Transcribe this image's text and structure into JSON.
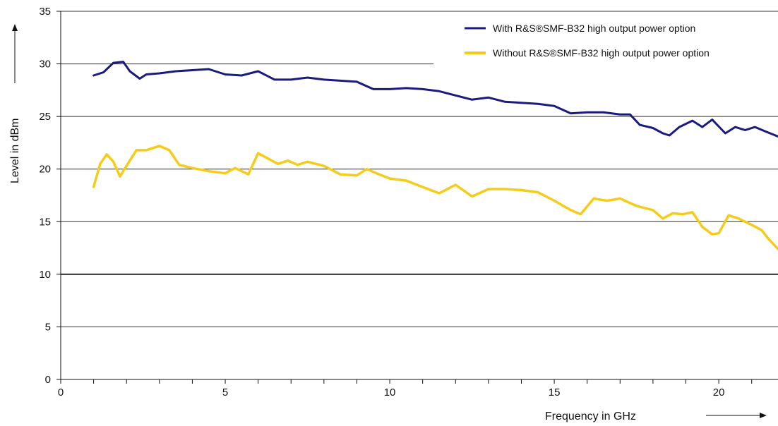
{
  "chart_data": {
    "type": "line",
    "title": "",
    "xlabel": "Frequency in GHz",
    "ylabel": "Level in dBm",
    "xlim": [
      0,
      21.8
    ],
    "ylim": [
      0,
      35
    ],
    "xticks": [
      0,
      5,
      10,
      15,
      20
    ],
    "yticks": [
      0,
      5,
      10,
      15,
      20,
      25,
      30,
      35
    ],
    "grid": "horizontal",
    "legend_position": "top-right",
    "series": [
      {
        "name": "With R&S®SMF-B32 high output power option",
        "color": "#1a1a80",
        "x": [
          1.0,
          1.3,
          1.6,
          1.9,
          2.1,
          2.4,
          2.6,
          3.0,
          3.5,
          4.0,
          4.5,
          5.0,
          5.5,
          6.0,
          6.5,
          7.0,
          7.5,
          8.0,
          8.5,
          9.0,
          9.5,
          10.0,
          10.5,
          11.0,
          11.5,
          12.0,
          12.5,
          13.0,
          13.5,
          14.0,
          14.5,
          15.0,
          15.5,
          16.0,
          16.5,
          17.0,
          17.3,
          17.6,
          18.0,
          18.3,
          18.5,
          18.8,
          19.2,
          19.5,
          19.8,
          20.2,
          20.5,
          20.8,
          21.1,
          21.4,
          21.8
        ],
        "y": [
          28.9,
          29.2,
          30.1,
          30.2,
          29.3,
          28.6,
          29.0,
          29.1,
          29.3,
          29.4,
          29.5,
          29.0,
          28.9,
          29.3,
          28.5,
          28.5,
          28.7,
          28.5,
          28.4,
          28.3,
          27.6,
          27.6,
          27.7,
          27.6,
          27.4,
          27.0,
          26.6,
          26.8,
          26.4,
          26.3,
          26.2,
          26.0,
          25.3,
          25.4,
          25.4,
          25.2,
          25.2,
          24.2,
          23.9,
          23.4,
          23.2,
          24.0,
          24.6,
          24.0,
          24.7,
          23.4,
          24.0,
          23.7,
          24.0,
          23.6,
          23.1
        ]
      },
      {
        "name": "Without R&S®SMF-B32 high output power option",
        "color": "#f5cc1a",
        "x": [
          1.0,
          1.2,
          1.4,
          1.6,
          1.8,
          2.0,
          2.3,
          2.6,
          3.0,
          3.3,
          3.6,
          4.0,
          4.5,
          5.0,
          5.3,
          5.7,
          6.0,
          6.3,
          6.6,
          6.9,
          7.2,
          7.5,
          8.0,
          8.5,
          9.0,
          9.3,
          9.6,
          10.0,
          10.5,
          11.0,
          11.5,
          12.0,
          12.5,
          13.0,
          13.5,
          14.0,
          14.5,
          15.0,
          15.5,
          15.8,
          16.2,
          16.6,
          17.0,
          17.5,
          18.0,
          18.3,
          18.6,
          18.9,
          19.2,
          19.5,
          19.8,
          20.0,
          20.3,
          20.6,
          21.0,
          21.3,
          21.5,
          21.8
        ],
        "y": [
          18.3,
          20.5,
          21.4,
          20.7,
          19.3,
          20.3,
          21.8,
          21.8,
          22.2,
          21.8,
          20.4,
          20.1,
          19.8,
          19.6,
          20.1,
          19.5,
          21.5,
          21.0,
          20.5,
          20.8,
          20.4,
          20.7,
          20.3,
          19.5,
          19.4,
          20.0,
          19.6,
          19.1,
          18.9,
          18.3,
          17.7,
          18.5,
          17.4,
          18.1,
          18.1,
          18.0,
          17.8,
          17.0,
          16.1,
          15.7,
          17.2,
          17.0,
          17.2,
          16.5,
          16.1,
          15.3,
          15.8,
          15.7,
          15.9,
          14.5,
          13.8,
          13.9,
          15.6,
          15.3,
          14.7,
          14.2,
          13.4,
          12.4
        ]
      }
    ]
  }
}
